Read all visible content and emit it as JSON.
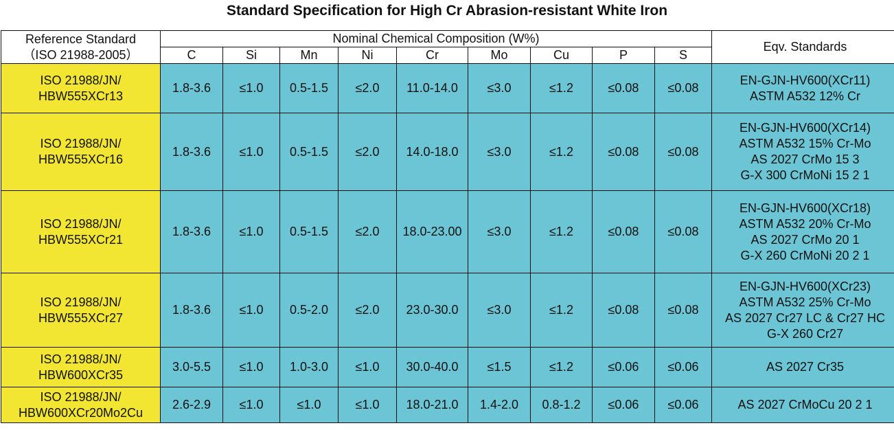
{
  "title": "Standard Specification for High Cr Abrasion-resistant White Iron",
  "header": {
    "ref_line1": "Reference Standard",
    "ref_line2": "（ISO 21988-2005）",
    "composition": "Nominal Chemical Composition (W%)",
    "eqv": "Eqv. Standards",
    "elements": [
      "C",
      "Si",
      "Mn",
      "Ni",
      "Cr",
      "Mo",
      "Cu",
      "P",
      "S"
    ]
  },
  "rows": [
    {
      "ref": [
        "ISO 21988/JN/",
        "HBW555XCr13"
      ],
      "values": [
        "1.8-3.6",
        "≤1.0",
        "0.5-1.5",
        "≤2.0",
        "11.0-14.0",
        "≤3.0",
        "≤1.2",
        "≤0.08",
        "≤0.08"
      ],
      "eqv": [
        "EN-GJN-HV600(XCr11)",
        "ASTM A532 12% Cr"
      ]
    },
    {
      "ref": [
        "ISO 21988/JN/",
        "HBW555XCr16"
      ],
      "values": [
        "1.8-3.6",
        "≤1.0",
        "0.5-1.5",
        "≤2.0",
        "14.0-18.0",
        "≤3.0",
        "≤1.2",
        "≤0.08",
        "≤0.08"
      ],
      "eqv": [
        "EN-GJN-HV600(XCr14)",
        "ASTM A532 15% Cr-Mo",
        "AS 2027  CrMo 15 3",
        "G-X 300 CrMoNi 15 2 1"
      ]
    },
    {
      "ref": [
        "ISO 21988/JN/",
        "HBW555XCr21"
      ],
      "values": [
        "1.8-3.6",
        "≤1.0",
        "0.5-1.5",
        "≤2.0",
        "18.0-23.00",
        "≤3.0",
        "≤1.2",
        "≤0.08",
        "≤0.08"
      ],
      "eqv": [
        "EN-GJN-HV600(XCr18)",
        "ASTM A532 20% Cr-Mo",
        "AS 2027 CrMo 20 1",
        "G-X 260 CrMoNi 20 2 1"
      ]
    },
    {
      "ref": [
        "ISO 21988/JN/",
        "HBW555XCr27"
      ],
      "values": [
        "1.8-3.6",
        "≤1.0",
        "0.5-2.0",
        "≤2.0",
        "23.0-30.0",
        "≤3.0",
        "≤1.2",
        "≤0.08",
        "≤0.08"
      ],
      "eqv": [
        "EN-GJN-HV600(XCr23)",
        "ASTM A532 25% Cr-Mo",
        "AS 2027 Cr27 LC & Cr27 HC",
        "G-X 260 Cr27"
      ]
    },
    {
      "ref": [
        "ISO 21988/JN/",
        "HBW600XCr35"
      ],
      "values": [
        "3.0-5.5",
        "≤1.0",
        "1.0-3.0",
        "≤1.0",
        "30.0-40.0",
        "≤1.5",
        "≤1.2",
        "≤0.06",
        "≤0.06"
      ],
      "eqv": [
        "AS 2027 Cr35"
      ]
    },
    {
      "ref": [
        "ISO 21988/JN/",
        "HBW600XCr20Mo2Cu"
      ],
      "values": [
        "2.6-2.9",
        "≤1.0",
        "≤1.0",
        "≤1.0",
        "18.0-21.0",
        "1.4-2.0",
        "0.8-1.2",
        "≤0.06",
        "≤0.06"
      ],
      "eqv": [
        "AS 2027 CrMoCu 20 2 1"
      ]
    }
  ],
  "colors": {
    "reference_cell": "#f2e632",
    "value_cell": "#6cc5d4",
    "header_cell": "#ffffff"
  }
}
